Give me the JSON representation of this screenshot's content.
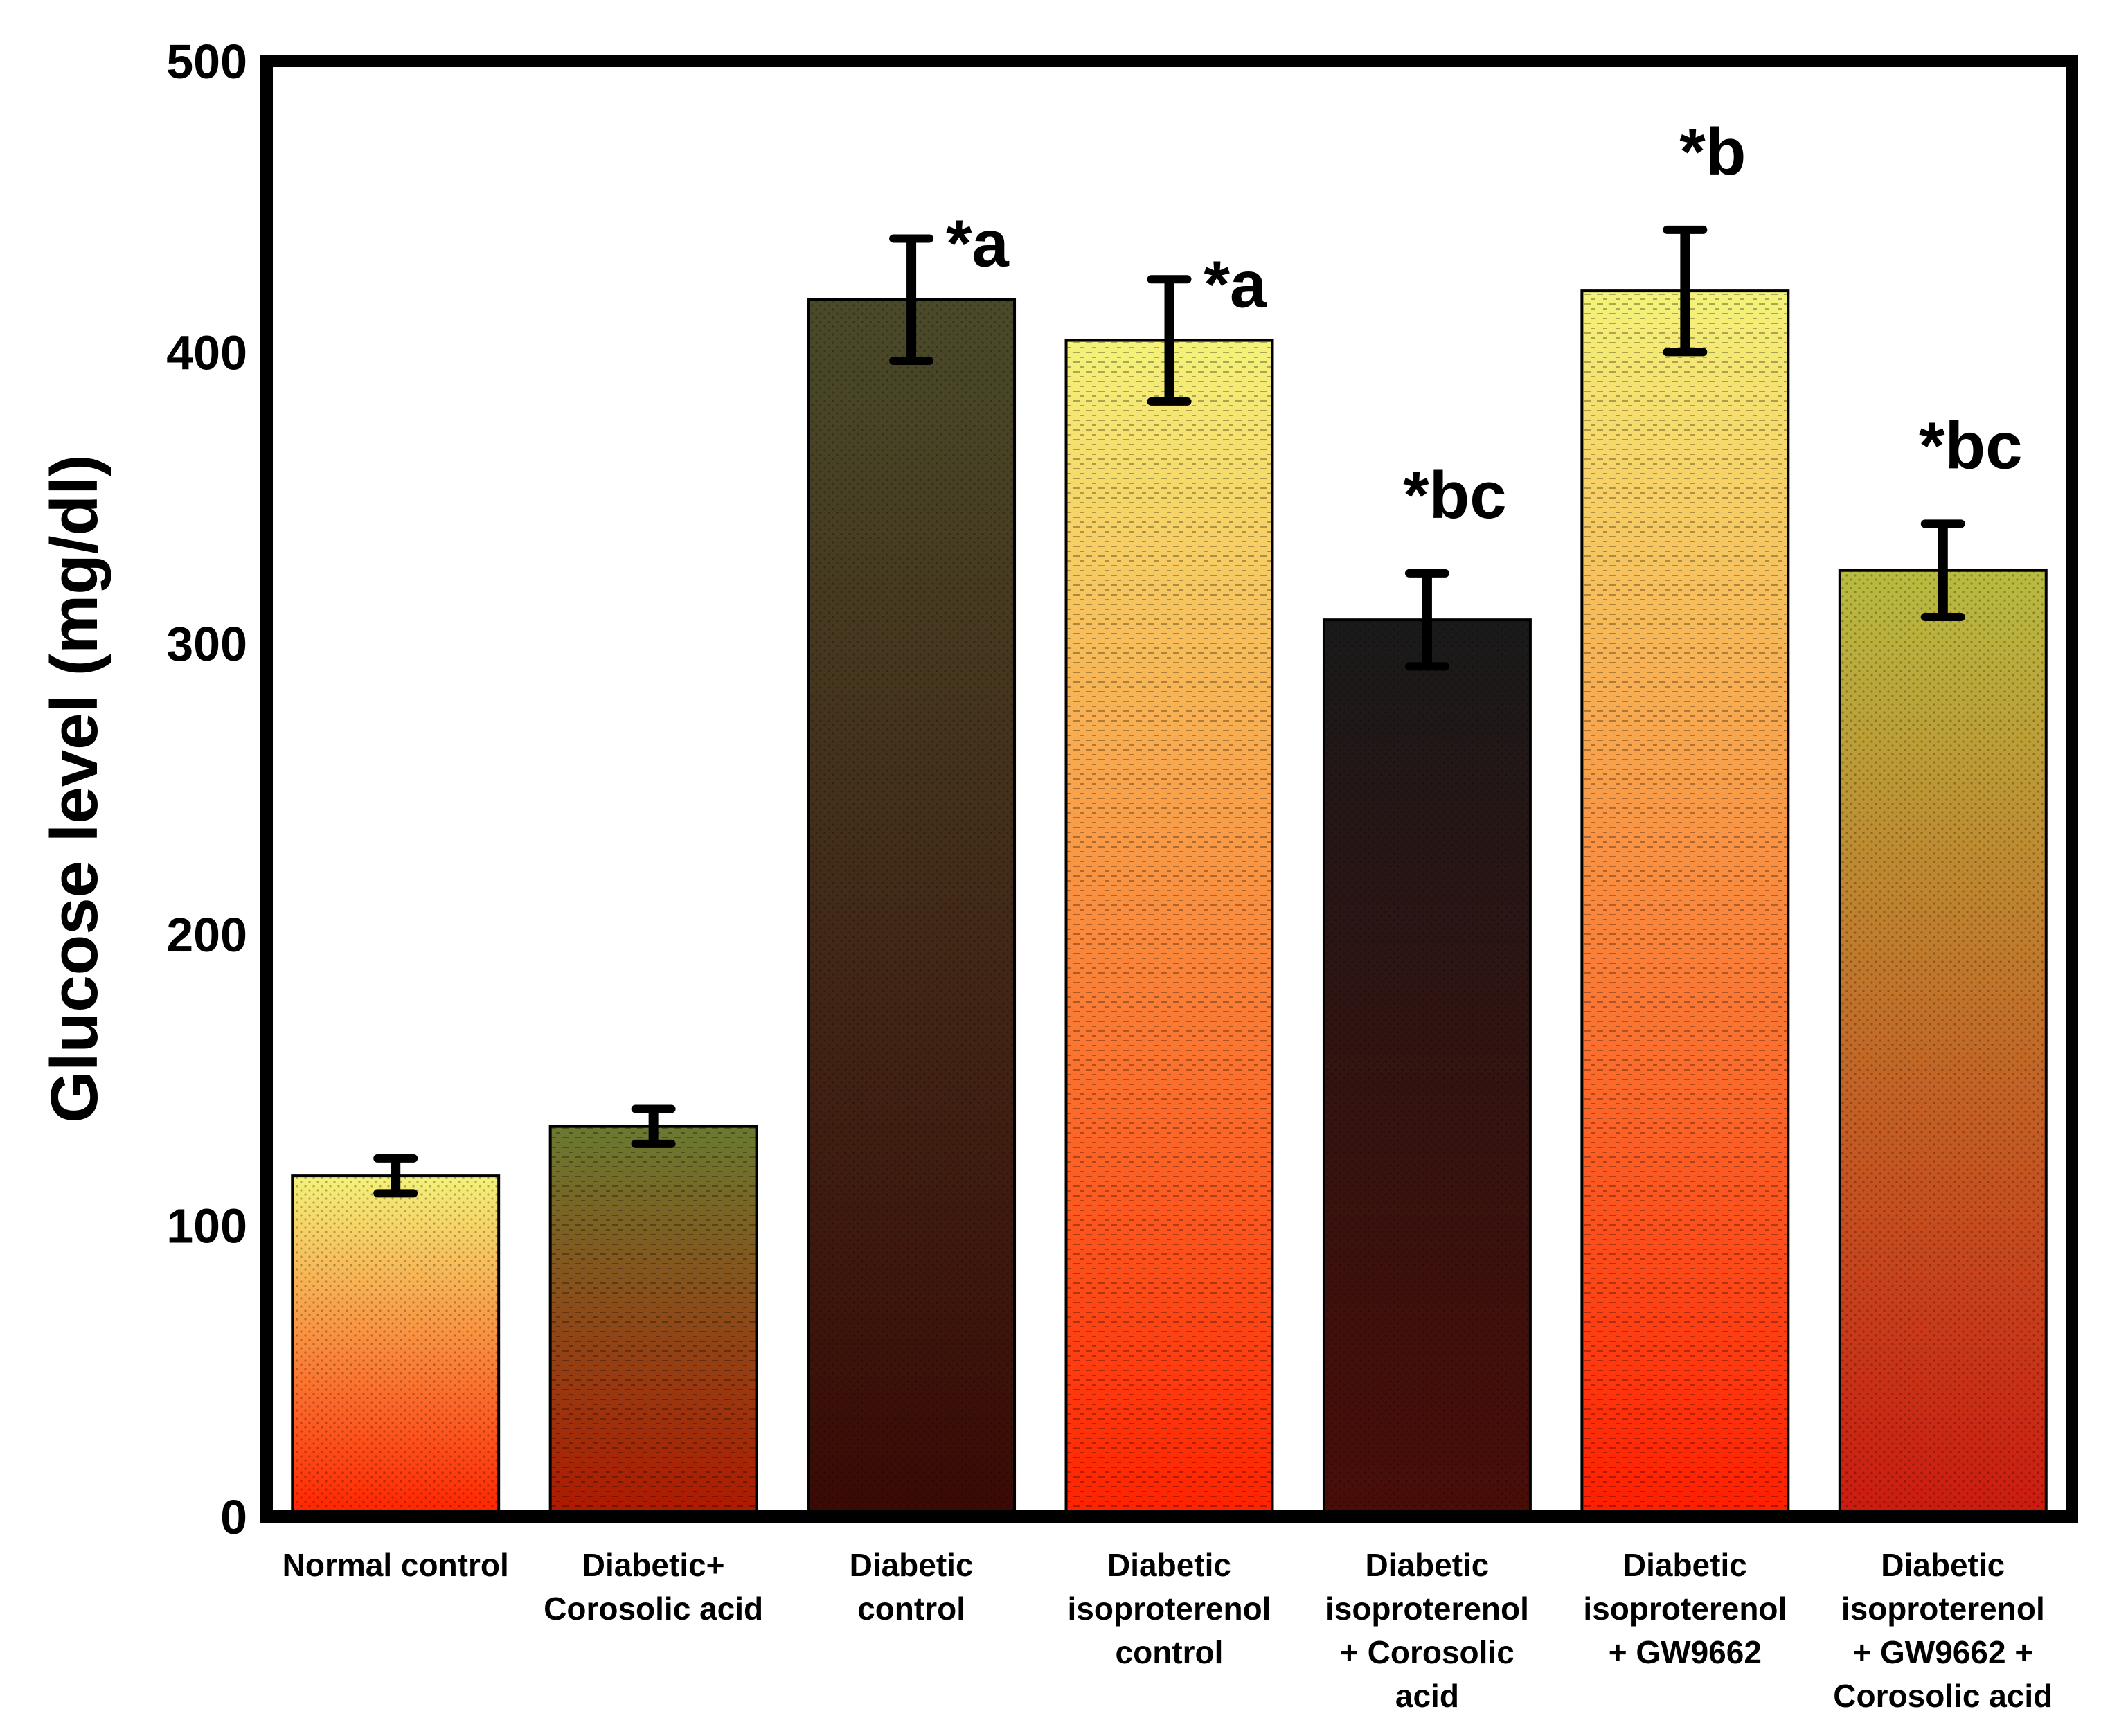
{
  "chart_data": {
    "type": "bar",
    "title": "",
    "xlabel": "",
    "ylabel": "Glucose level (mg/dl)",
    "ylim": [
      0,
      500
    ],
    "yticks": [
      0,
      100,
      200,
      300,
      400,
      500
    ],
    "grid": false,
    "categories": [
      [
        "Normal control"
      ],
      [
        "Diabetic+",
        "Corosolic acid"
      ],
      [
        "Diabetic",
        "control"
      ],
      [
        "Diabetic",
        "isoproterenol",
        "control"
      ],
      [
        "Diabetic",
        "isoproterenol",
        "+ Corosolic",
        "acid"
      ],
      [
        "Diabetic",
        "isoproterenol",
        "+ GW9662"
      ],
      [
        "Diabetic",
        "isoproterenol",
        "+ GW9662 +",
        "Corosolic acid"
      ]
    ],
    "values": [
      117,
      134,
      418,
      404,
      308,
      421,
      325
    ],
    "errors": [
      6,
      6,
      21,
      21,
      16,
      21,
      16
    ],
    "annotations": [
      "",
      "",
      "*a",
      "*a",
      "*bc",
      "*b",
      "*bc"
    ],
    "bar_gradients": [
      [
        "#f4f37a",
        "#ff2200"
      ],
      [
        "#6a7a30",
        "#b01800"
      ],
      [
        "#4a4a2a",
        "#3a0a05"
      ],
      [
        "#f4f37a",
        "#ff2200"
      ],
      [
        "#1a1a1a",
        "#4a0d08"
      ],
      [
        "#f4f37a",
        "#ff1e00"
      ],
      [
        "#b8bc40",
        "#cc1a10"
      ]
    ]
  }
}
